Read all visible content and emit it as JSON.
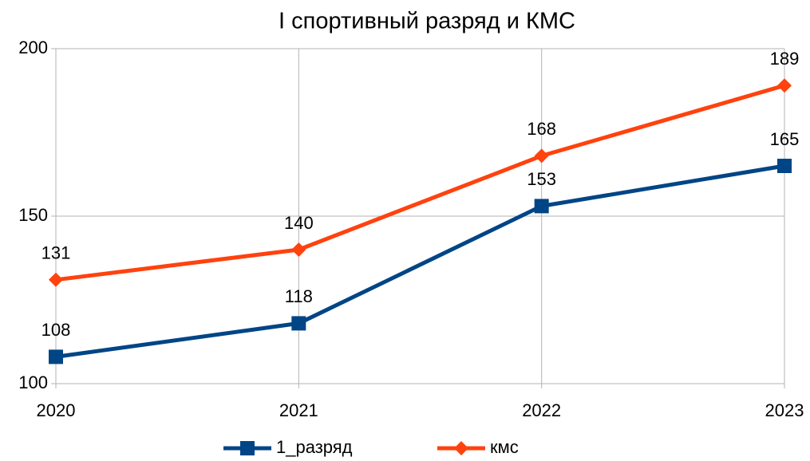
{
  "chart_data": {
    "type": "line",
    "title": "I спортивный разряд и КМС",
    "categories": [
      "2020",
      "2021",
      "2022",
      "2023"
    ],
    "series": [
      {
        "name": "1_разряд",
        "color": "#004586",
        "marker": "square",
        "values": [
          108,
          118,
          153,
          165
        ]
      },
      {
        "name": "кмс",
        "color": "#ff420e",
        "marker": "diamond",
        "values": [
          131,
          140,
          168,
          189
        ]
      }
    ],
    "ylim": [
      100,
      200
    ],
    "yticks": [
      100,
      150,
      200
    ],
    "grid": true,
    "legend": "bottom"
  }
}
